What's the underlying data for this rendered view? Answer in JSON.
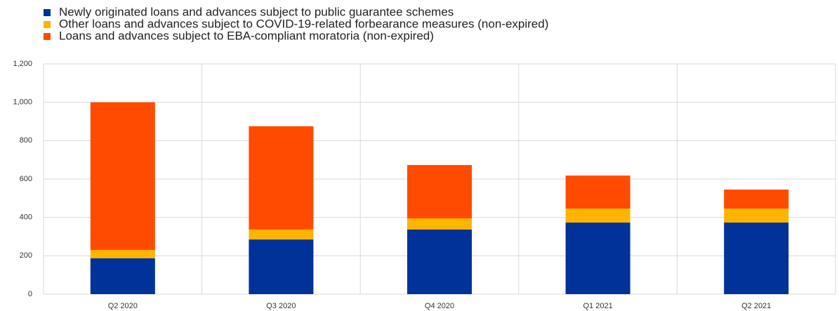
{
  "chart_data": {
    "type": "stacked_bar",
    "categories": [
      "Q2 2020",
      "Q3 2020",
      "Q4 2020",
      "Q1 2021",
      "Q2 2021"
    ],
    "series": [
      {
        "name": "Newly originated loans and advances subject to public guarantee schemes",
        "color": "#003299",
        "values": [
          187,
          285,
          337,
          373,
          373
        ]
      },
      {
        "name": "Other loans and advances subject to COVID-19-related forbearance measures (non-expired)",
        "color": "#ffb400",
        "values": [
          43,
          52,
          58,
          73,
          73
        ]
      },
      {
        "name": "Loans and advances subject to EBA-compliant moratoria (non-expired)",
        "color": "#ff4b00",
        "values": [
          770,
          538,
          278,
          172,
          99
        ]
      }
    ],
    "ylim": [
      0,
      1200
    ],
    "yticks": [
      0,
      200,
      400,
      600,
      800,
      {
        "value": 1000,
        "label": "1,000"
      },
      {
        "value": 1200,
        "label": "1,200"
      }
    ],
    "grid": true,
    "legend": "top-left"
  }
}
